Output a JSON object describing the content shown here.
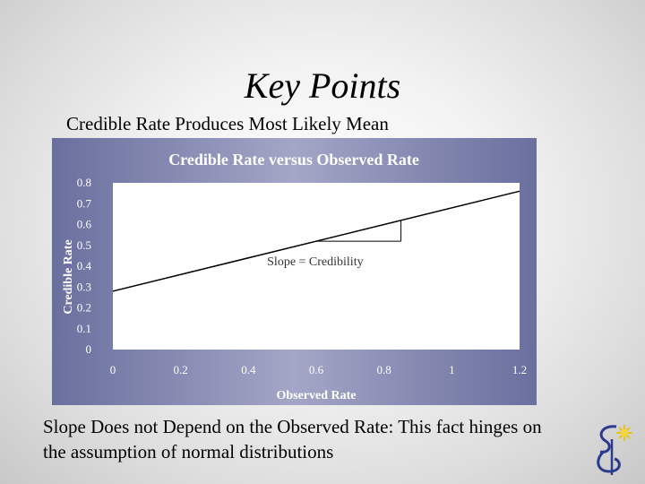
{
  "slide": {
    "title": "Key Points",
    "subtitle": "Credible Rate Produces Most Likely Mean",
    "footer": "Slope Does not Depend on the Observed Rate: This fact hinges on the assumption of normal distributions"
  },
  "chart_data": {
    "type": "line",
    "title": "Credible Rate versus Observed Rate",
    "xlabel": "Observed Rate",
    "ylabel": "Credible Rate",
    "xlim": [
      0,
      1.2
    ],
    "ylim": [
      0,
      0.8
    ],
    "x_ticks": [
      "0",
      "0.2",
      "0.4",
      "0.6",
      "0.8",
      "1",
      "1.2"
    ],
    "y_ticks": [
      "0",
      "0.1",
      "0.2",
      "0.3",
      "0.4",
      "0.5",
      "0.6",
      "0.7",
      "0.8"
    ],
    "series": [
      {
        "x": [
          0,
          1.2
        ],
        "y": [
          0.28,
          0.76
        ]
      }
    ],
    "annotation": {
      "text": "Slope = Credibility",
      "slope_triangle": {
        "x0": 0.6,
        "x1": 0.85,
        "y0": 0.52,
        "y1": 0.62
      }
    },
    "colors": {
      "line": "#000000",
      "plot_background": "#ffffff",
      "text": "#ffffff"
    },
    "grid": false,
    "legend": "none"
  }
}
